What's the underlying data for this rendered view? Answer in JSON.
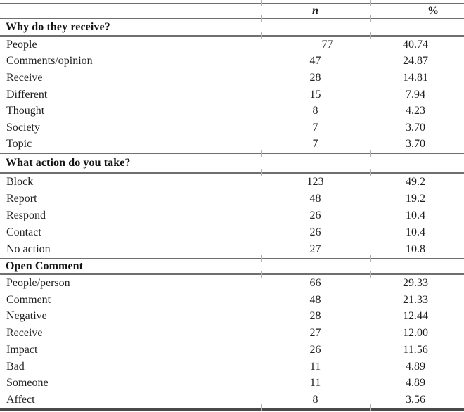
{
  "table": {
    "header": {
      "n": "n",
      "pct": "%"
    },
    "sections": [
      {
        "title": "Why do they receive?",
        "rows": [
          {
            "label": "People",
            "n": "77",
            "pct": "40.74",
            "n_shift": 17
          },
          {
            "label": "Comments/opinion",
            "n": "47",
            "pct": "24.87"
          },
          {
            "label": "Receive",
            "n": "28",
            "pct": "14.81"
          },
          {
            "label": "Different",
            "n": "15",
            "pct": "7.94"
          },
          {
            "label": "Thought",
            "n": "8",
            "pct": "4.23"
          },
          {
            "label": "Society",
            "n": "7",
            "pct": "3.70"
          },
          {
            "label": "Topic",
            "n": "7",
            "pct": "3.70"
          }
        ]
      },
      {
        "title": "What action do you take?",
        "rows": [
          {
            "label": "Block",
            "n": "123",
            "pct": "49.2"
          },
          {
            "label": "Report",
            "n": "48",
            "pct": "19.2"
          },
          {
            "label": "Respond",
            "n": "26",
            "pct": "10.4"
          },
          {
            "label": "Contact",
            "n": "26",
            "pct": "10.4"
          },
          {
            "label": "No action",
            "n": "27",
            "pct": "10.8"
          }
        ]
      },
      {
        "title": "Open Comment",
        "rows": [
          {
            "label": "People/person",
            "n": "66",
            "pct": "29.33"
          },
          {
            "label": "Comment",
            "n": "48",
            "pct": "21.33"
          },
          {
            "label": "Negative",
            "n": "28",
            "pct": "12.44"
          },
          {
            "label": "Receive",
            "n": "27",
            "pct": "12.00"
          },
          {
            "label": "Impact",
            "n": "26",
            "pct": "11.56"
          },
          {
            "label": "Bad",
            "n": "11",
            "pct": "4.89"
          },
          {
            "label": "Someone",
            "n": "11",
            "pct": "4.89"
          },
          {
            "label": "Affect",
            "n": "8",
            "pct": "3.56"
          }
        ]
      }
    ]
  }
}
